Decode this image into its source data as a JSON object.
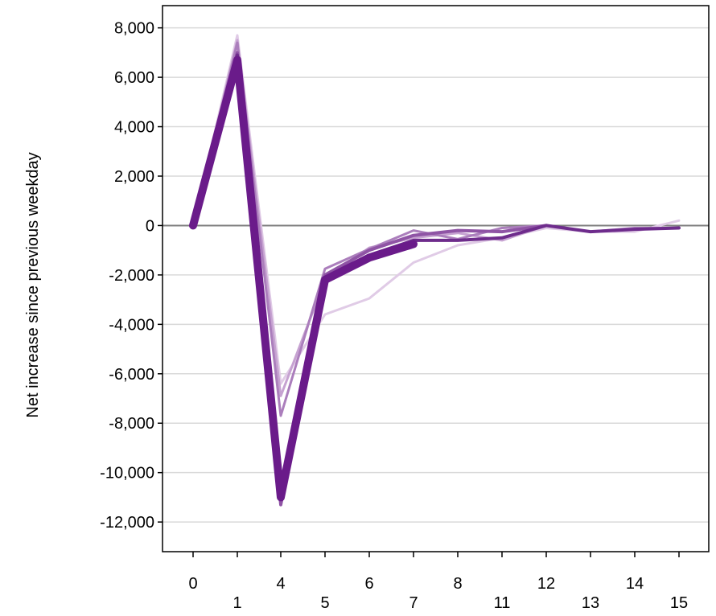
{
  "chart_data": {
    "type": "line",
    "title": "",
    "xlabel": "",
    "ylabel": "Net increase since previous weekday",
    "x_categories": [
      "0",
      "1",
      "4",
      "5",
      "6",
      "7",
      "8",
      "11",
      "12",
      "13",
      "14",
      "15"
    ],
    "x_label_row": [
      "high",
      "low",
      "high",
      "low",
      "high",
      "low",
      "high",
      "low",
      "high",
      "low",
      "high",
      "low"
    ],
    "ylim": [
      -13200,
      8900
    ],
    "yticks": [
      8000,
      6000,
      4000,
      2000,
      0,
      -2000,
      -4000,
      -6000,
      -8000,
      -10000,
      -12000
    ],
    "ytick_labels": [
      "8,000",
      "6,000",
      "4,000",
      "2,000",
      "0",
      "-2,000",
      "-4,000",
      "-6,000",
      "-8,000",
      "-10,000",
      "-12,000"
    ],
    "grid": true,
    "zero_line": true,
    "legend": "none",
    "series": [
      {
        "color": "#e0cbe6",
        "width": 3,
        "values": [
          0,
          7700,
          -6400,
          -3600,
          -2950,
          -1500,
          -800,
          -500,
          -100,
          -250,
          -250,
          200
        ]
      },
      {
        "color": "#c6a2d1",
        "width": 3,
        "values": [
          0,
          7500,
          -6900,
          -2200,
          -900,
          -500,
          -300,
          -600,
          0,
          -250,
          -150,
          -100
        ]
      },
      {
        "color": "#ab7ebc",
        "width": 3,
        "values": [
          0,
          7400,
          -7700,
          -1750,
          -950,
          -200,
          -550,
          -100,
          0,
          -250,
          -100,
          -100
        ]
      },
      {
        "color": "#8f54a5",
        "width": 4,
        "values": [
          0,
          7000,
          -11300,
          -2000,
          -1000,
          -400,
          -200,
          -250,
          0,
          null,
          null,
          null
        ]
      },
      {
        "color": "#6e2c8c",
        "width": 4,
        "values": [
          0,
          6900,
          -10900,
          -2200,
          -1200,
          -600,
          -600,
          -500,
          0,
          -250,
          -150,
          -100
        ]
      },
      {
        "color": "#6a1b8a",
        "width": 10,
        "values": [
          0,
          6700,
          -11000,
          -2200,
          -1300,
          -750,
          null,
          null,
          null,
          null,
          null,
          null
        ]
      }
    ],
    "colors": {
      "grid": "#d9d9d9",
      "zero_line": "#7f7f7f",
      "axis": "#000000"
    }
  },
  "cropped_caption": {
    "text": "",
    "color": "#a0215a"
  }
}
